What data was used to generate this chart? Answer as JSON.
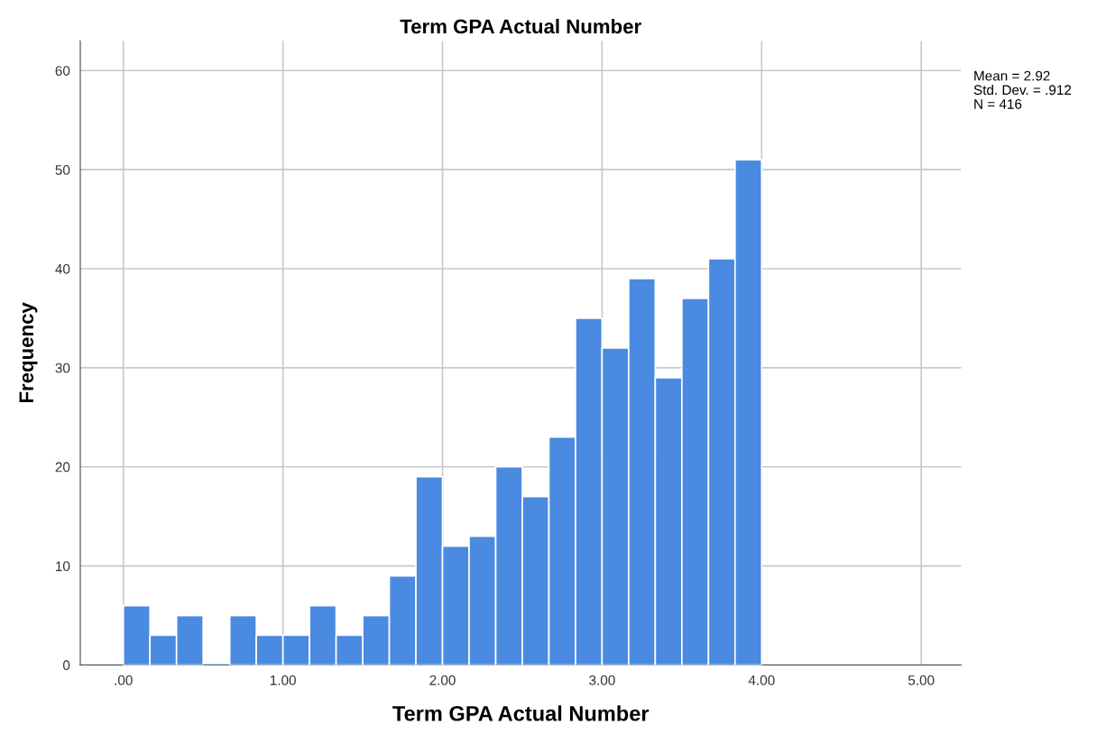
{
  "chart_data": {
    "type": "histogram",
    "title": "Term GPA Actual Number",
    "xlabel": "Term GPA Actual Number",
    "ylabel": "Frequency",
    "bins": [
      0,
      0.1667,
      0.3333,
      0.5,
      0.6667,
      0.8333,
      1,
      1.1667,
      1.3333,
      1.5,
      1.6667,
      1.8333,
      2,
      2.1667,
      2.3333,
      2.5,
      2.6667,
      2.8333,
      3,
      3.1667,
      3.3333,
      3.5,
      3.6667,
      3.8333,
      4
    ],
    "values": [
      6,
      3,
      5,
      0,
      5,
      3,
      3,
      6,
      3,
      5,
      9,
      19,
      12,
      13,
      20,
      17,
      23,
      35,
      32,
      39,
      29,
      37,
      41,
      51
    ],
    "color": "#4a8ae0",
    "xlim": [
      -0.27,
      5.25
    ],
    "ylim": [
      0,
      63
    ],
    "xticks": [
      {
        "value": 0,
        "label": ".00"
      },
      {
        "value": 1,
        "label": "1.00"
      },
      {
        "value": 2,
        "label": "2.00"
      },
      {
        "value": 3,
        "label": "3.00"
      },
      {
        "value": 4,
        "label": "4.00"
      },
      {
        "value": 5,
        "label": "5.00"
      }
    ],
    "yticks": [
      0,
      10,
      20,
      30,
      40,
      50,
      60
    ],
    "grid": true,
    "annotations": [
      "Mean = 2.92",
      "Std. Dev. = .912",
      "N = 416"
    ]
  }
}
